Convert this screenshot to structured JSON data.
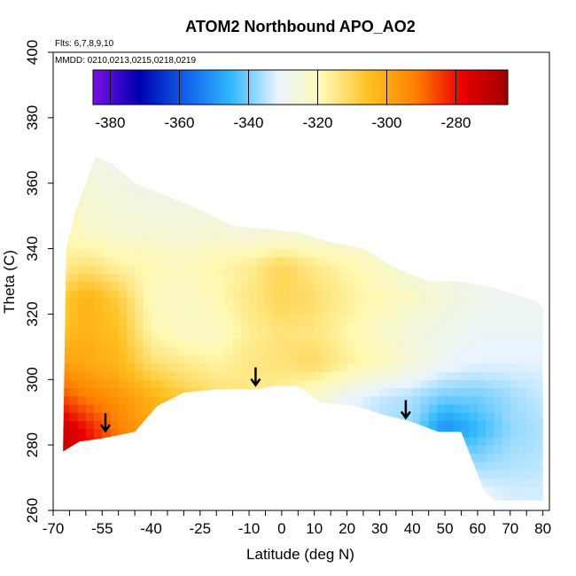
{
  "chart_data": {
    "type": "heatmap",
    "title": "ATOM2 Northbound APO_AO2",
    "annotations": [
      "Flts: 6,7,8,9,10",
      "MMDD: 0210,0213,0215,0218,0219"
    ],
    "xlabel": "Latitude (deg N)",
    "ylabel": "Theta (C)",
    "xlim": [
      -70,
      82
    ],
    "ylim": [
      260,
      400
    ],
    "x_tick_labels": [
      "-70",
      "-55",
      "-40",
      "-25",
      "-10",
      "0",
      "10",
      "20",
      "30",
      "40",
      "50",
      "60",
      "70",
      "80"
    ],
    "y_tick_labels": [
      "260",
      "280",
      "300",
      "320",
      "340",
      "360",
      "380",
      "400"
    ],
    "colorbar": {
      "range": [
        -385,
        -265
      ],
      "tick_labels": [
        "-380",
        "-360",
        "-340",
        "-320",
        "-300",
        "-280"
      ],
      "colors": [
        "#7a10e6",
        "#0000b0",
        "#1060e8",
        "#30b8ff",
        "#e8f4ff",
        "#fff8b0",
        "#ffc020",
        "#ff8000",
        "#e80000",
        "#a00000"
      ]
    },
    "upper_boundary": [
      [
        -66,
        340
      ],
      [
        -63,
        352
      ],
      [
        -57,
        368
      ],
      [
        -52,
        366
      ],
      [
        -45,
        360
      ],
      [
        -35,
        356
      ],
      [
        -25,
        352
      ],
      [
        -15,
        347
      ],
      [
        -5,
        346
      ],
      [
        5,
        345
      ],
      [
        15,
        342
      ],
      [
        25,
        340
      ],
      [
        35,
        334
      ],
      [
        45,
        330
      ],
      [
        55,
        330
      ],
      [
        65,
        328
      ],
      [
        78,
        324
      ],
      [
        80,
        322
      ]
    ],
    "lower_boundary": [
      [
        -67,
        278
      ],
      [
        -62,
        281
      ],
      [
        -55,
        282
      ],
      [
        -45,
        284
      ],
      [
        -38,
        292
      ],
      [
        -30,
        296
      ],
      [
        -20,
        297
      ],
      [
        -8,
        297
      ],
      [
        -2,
        298
      ],
      [
        5,
        298
      ],
      [
        12,
        293
      ],
      [
        22,
        292
      ],
      [
        32,
        289
      ],
      [
        40,
        287
      ],
      [
        48,
        284
      ],
      [
        55,
        284
      ],
      [
        62,
        266
      ],
      [
        65,
        263
      ],
      [
        80,
        263
      ]
    ],
    "field": {
      "lats": [
        -68,
        -60,
        -50,
        -40,
        -30,
        -20,
        -10,
        0,
        10,
        20,
        30,
        40,
        50,
        60,
        70,
        80
      ],
      "thetas": [
        265,
        275,
        285,
        295,
        305,
        315,
        325,
        335,
        345,
        355,
        365
      ],
      "values": [
        [
          -275,
          -278,
          -288,
          -295,
          -304,
          -310,
          -315,
          -318,
          -320,
          -322,
          -323,
          -324,
          -328,
          -330,
          -333,
          -333
        ],
        [
          -272,
          -276,
          -288,
          -295,
          -304,
          -310,
          -315,
          -318,
          -320,
          -322,
          -323,
          -334,
          -336,
          -338,
          -336,
          -335
        ],
        [
          -272,
          -280,
          -292,
          -299,
          -304,
          -310,
          -315,
          -318,
          -325,
          -333,
          -336,
          -338,
          -352,
          -345,
          -338,
          -336
        ],
        [
          -286,
          -292,
          -296,
          -302,
          -308,
          -312,
          -315,
          -317,
          -323,
          -330,
          -334,
          -336,
          -340,
          -340,
          -337,
          -334
        ],
        [
          -298,
          -300,
          -303,
          -312,
          -315,
          -317,
          -314,
          -313,
          -311,
          -316,
          -320,
          -325,
          -330,
          -332,
          -332,
          -332
        ],
        [
          -306,
          -302,
          -305,
          -318,
          -322,
          -322,
          -316,
          -313,
          -314,
          -318,
          -322,
          -326,
          -328,
          -330,
          -330,
          -330
        ],
        [
          -308,
          -302,
          -308,
          -320,
          -322,
          -319,
          -314,
          -310,
          -312,
          -316,
          -319,
          -322,
          -326,
          -328,
          -329,
          -329
        ],
        [
          -316,
          -313,
          -317,
          -319,
          -321,
          -318,
          -316,
          -310,
          -315,
          -318,
          -322,
          -326,
          -327,
          -328,
          -328,
          -328
        ],
        [
          -318,
          -322,
          -324,
          -324,
          -325,
          -324,
          -326,
          -326,
          -326,
          -326,
          -326,
          -326,
          -326,
          -326,
          -326,
          -326
        ],
        [
          -318,
          -324,
          -326,
          -327,
          -327,
          -327,
          -327,
          -327,
          -327,
          -327,
          -327,
          -327,
          -327,
          -327,
          -327,
          -327
        ],
        [
          -320,
          -326,
          -328,
          -328,
          -328,
          -328,
          -328,
          -328,
          -328,
          -328,
          -328,
          -328,
          -328,
          -328,
          -328,
          -328
        ]
      ]
    },
    "arrows": [
      [
        -54,
        287
      ],
      [
        -8,
        301
      ],
      [
        38,
        291
      ]
    ]
  }
}
